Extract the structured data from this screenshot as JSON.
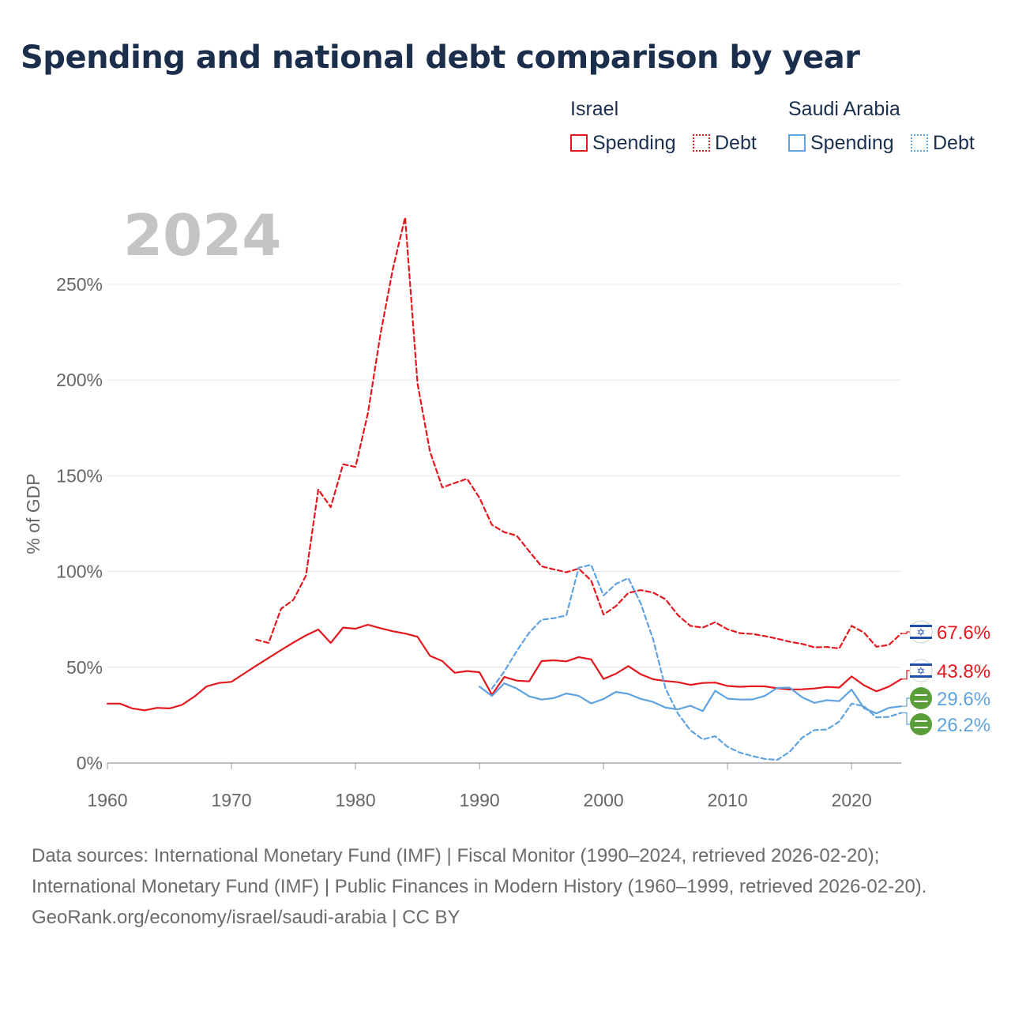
{
  "title": "Spending and national debt comparison by year",
  "legend": {
    "israel": {
      "country": "Israel",
      "spending": "Spending",
      "debt": "Debt"
    },
    "saudi": {
      "country": "Saudi Arabia",
      "spending": "Spending",
      "debt": "Debt"
    }
  },
  "colors": {
    "israel": "#e3181e",
    "saudi": "#5fa2e0",
    "saudi_flag": "#5a9e3a",
    "israel_flag": "#1f4fa6"
  },
  "icons": {
    "israel": "israel-flag-icon",
    "saudi": "saudi-flag-icon"
  },
  "footer": {
    "sources": "Data sources: International Monetary Fund (IMF) | Fiscal Monitor (1990–2024, retrieved 2026-02-20); International Monetary Fund (IMF) | Public Finances in Modern History (1960–1999, retrieved 2026-02-20).",
    "credit": "GeoRank.org/economy/israel/saudi-arabia | CC BY"
  },
  "chart_data": {
    "type": "line",
    "title": "Spending and national debt comparison by year",
    "year_label": "2024",
    "xlabel": "",
    "ylabel": "% of GDP",
    "xlim": [
      1960,
      2024
    ],
    "ylim": [
      0,
      285
    ],
    "xticks": [
      1960,
      1970,
      1980,
      1990,
      2000,
      2010,
      2020
    ],
    "yticks": [
      0,
      50,
      100,
      150,
      200,
      250
    ],
    "ytick_labels": [
      "0%",
      "50%",
      "100%",
      "150%",
      "200%",
      "250%"
    ],
    "grid": true,
    "end_labels": {
      "israel_debt": "67.6%",
      "israel_spending": "43.8%",
      "saudi_spending": "29.6%",
      "saudi_debt": "26.2%"
    },
    "series": [
      {
        "name": "Israel Spending",
        "country": "israel",
        "style": "solid",
        "points": [
          [
            1960,
            31
          ],
          [
            1961,
            31
          ],
          [
            1962,
            28.5
          ],
          [
            1963,
            27.5
          ],
          [
            1964,
            28.8
          ],
          [
            1965,
            28.5
          ],
          [
            1966,
            30.3
          ],
          [
            1967,
            34.6
          ],
          [
            1968,
            40
          ],
          [
            1969,
            41.8
          ],
          [
            1970,
            42.4
          ],
          [
            1971,
            46.6
          ],
          [
            1972,
            50.8
          ],
          [
            1973,
            54.9
          ],
          [
            1974,
            59
          ],
          [
            1975,
            62.9
          ],
          [
            1976,
            66.6
          ],
          [
            1977,
            69.7
          ],
          [
            1978,
            62.7
          ],
          [
            1979,
            70.7
          ],
          [
            1980,
            70.1
          ],
          [
            1981,
            72.2
          ],
          [
            1982,
            70.4
          ],
          [
            1983,
            68.8
          ],
          [
            1984,
            67.6
          ],
          [
            1985,
            65.9
          ],
          [
            1986,
            56
          ],
          [
            1987,
            53.2
          ],
          [
            1988,
            47.1
          ],
          [
            1989,
            48
          ],
          [
            1990,
            47.4
          ],
          [
            1991,
            35.6
          ],
          [
            1992,
            44.9
          ],
          [
            1993,
            43
          ],
          [
            1994,
            42.6
          ],
          [
            1995,
            53.2
          ],
          [
            1996,
            53.6
          ],
          [
            1997,
            53.1
          ],
          [
            1998,
            55.3
          ],
          [
            1999,
            54.1
          ],
          [
            2000,
            43.9
          ],
          [
            2001,
            46.6
          ],
          [
            2002,
            50.6
          ],
          [
            2003,
            46.3
          ],
          [
            2004,
            43.7
          ],
          [
            2005,
            42.8
          ],
          [
            2006,
            42.2
          ],
          [
            2007,
            40.8
          ],
          [
            2008,
            41.8
          ],
          [
            2009,
            42
          ],
          [
            2010,
            40.2
          ],
          [
            2011,
            39.8
          ],
          [
            2012,
            40.1
          ],
          [
            2013,
            40
          ],
          [
            2014,
            39
          ],
          [
            2015,
            38.4
          ],
          [
            2016,
            38.5
          ],
          [
            2017,
            38.9
          ],
          [
            2018,
            39.7
          ],
          [
            2019,
            39.4
          ],
          [
            2020,
            45.2
          ],
          [
            2021,
            40.6
          ],
          [
            2022,
            37.4
          ],
          [
            2023,
            39.9
          ],
          [
            2024,
            43.8
          ]
        ]
      },
      {
        "name": "Israel Debt",
        "country": "israel",
        "style": "dashed",
        "points": [
          [
            1972,
            64.4
          ],
          [
            1973,
            62.7
          ],
          [
            1974,
            80.5
          ],
          [
            1975,
            85.2
          ],
          [
            1976,
            97.8
          ],
          [
            1977,
            142.8
          ],
          [
            1978,
            133.6
          ],
          [
            1979,
            156
          ],
          [
            1980,
            154.6
          ],
          [
            1981,
            182.6
          ],
          [
            1982,
            223.5
          ],
          [
            1983,
            257.7
          ],
          [
            1984,
            284.9
          ],
          [
            1985,
            198.2
          ],
          [
            1986,
            162.7
          ],
          [
            1987,
            143.9
          ],
          [
            1988,
            146.2
          ],
          [
            1989,
            148.4
          ],
          [
            1990,
            138.4
          ],
          [
            1991,
            124.3
          ],
          [
            1992,
            120.5
          ],
          [
            1993,
            118.7
          ],
          [
            1994,
            110.6
          ],
          [
            1995,
            102.7
          ],
          [
            1996,
            101.1
          ],
          [
            1997,
            99.6
          ],
          [
            1998,
            101.5
          ],
          [
            1999,
            95.3
          ],
          [
            2000,
            77.5
          ],
          [
            2001,
            81.9
          ],
          [
            2002,
            88.8
          ],
          [
            2003,
            90.3
          ],
          [
            2004,
            89
          ],
          [
            2005,
            85.5
          ],
          [
            2006,
            77.2
          ],
          [
            2007,
            71.6
          ],
          [
            2008,
            70.7
          ],
          [
            2009,
            73.5
          ],
          [
            2010,
            69.8
          ],
          [
            2011,
            67.8
          ],
          [
            2012,
            67.4
          ],
          [
            2013,
            66.3
          ],
          [
            2014,
            64.9
          ],
          [
            2015,
            63.3
          ],
          [
            2016,
            62.2
          ],
          [
            2017,
            60.4
          ],
          [
            2018,
            60.6
          ],
          [
            2019,
            59.8
          ],
          [
            2020,
            71.6
          ],
          [
            2021,
            68.1
          ],
          [
            2022,
            60.7
          ],
          [
            2023,
            61.6
          ],
          [
            2024,
            67.6
          ]
        ]
      },
      {
        "name": "Saudi Arabia Spending",
        "country": "saudi",
        "style": "solid",
        "points": [
          [
            1990,
            39.9
          ],
          [
            1991,
            35
          ],
          [
            1992,
            41.6
          ],
          [
            1993,
            38.9
          ],
          [
            1994,
            34.8
          ],
          [
            1995,
            33.1
          ],
          [
            1996,
            33.9
          ],
          [
            1997,
            36.3
          ],
          [
            1998,
            35.1
          ],
          [
            1999,
            31.1
          ],
          [
            2000,
            33.4
          ],
          [
            2001,
            37.1
          ],
          [
            2002,
            36.1
          ],
          [
            2003,
            33.5
          ],
          [
            2004,
            31.9
          ],
          [
            2005,
            28.9
          ],
          [
            2006,
            28
          ],
          [
            2007,
            29.9
          ],
          [
            2008,
            27.1
          ],
          [
            2009,
            37.7
          ],
          [
            2010,
            33.6
          ],
          [
            2011,
            33.1
          ],
          [
            2012,
            33.2
          ],
          [
            2013,
            35
          ],
          [
            2014,
            39.2
          ],
          [
            2015,
            39.4
          ],
          [
            2016,
            34.3
          ],
          [
            2017,
            31.4
          ],
          [
            2018,
            32.8
          ],
          [
            2019,
            32.3
          ],
          [
            2020,
            38.3
          ],
          [
            2021,
            28.6
          ],
          [
            2022,
            25.9
          ],
          [
            2023,
            28.8
          ],
          [
            2024,
            29.6
          ]
        ]
      },
      {
        "name": "Saudi Arabia Debt",
        "country": "saudi",
        "style": "dashed",
        "points": [
          [
            1991,
            38.9
          ],
          [
            1992,
            47.8
          ],
          [
            1993,
            58.5
          ],
          [
            1994,
            68
          ],
          [
            1995,
            74.8
          ],
          [
            1996,
            75.6
          ],
          [
            1997,
            77.1
          ],
          [
            1998,
            102
          ],
          [
            1999,
            103.5
          ],
          [
            2000,
            87.5
          ],
          [
            2001,
            93.5
          ],
          [
            2002,
            96.5
          ],
          [
            2003,
            83.3
          ],
          [
            2004,
            64.6
          ],
          [
            2005,
            38.9
          ],
          [
            2006,
            25.8
          ],
          [
            2007,
            17.1
          ],
          [
            2008,
            12.3
          ],
          [
            2009,
            14
          ],
          [
            2010,
            8.4
          ],
          [
            2011,
            5.4
          ],
          [
            2012,
            3.6
          ],
          [
            2013,
            2.1
          ],
          [
            2014,
            1.6
          ],
          [
            2015,
            5.8
          ],
          [
            2016,
            13.1
          ],
          [
            2017,
            17.2
          ],
          [
            2018,
            17.5
          ],
          [
            2019,
            21.6
          ],
          [
            2020,
            31
          ],
          [
            2021,
            29.6
          ],
          [
            2022,
            23.8
          ],
          [
            2023,
            24.1
          ],
          [
            2024,
            26.2
          ]
        ]
      }
    ]
  }
}
